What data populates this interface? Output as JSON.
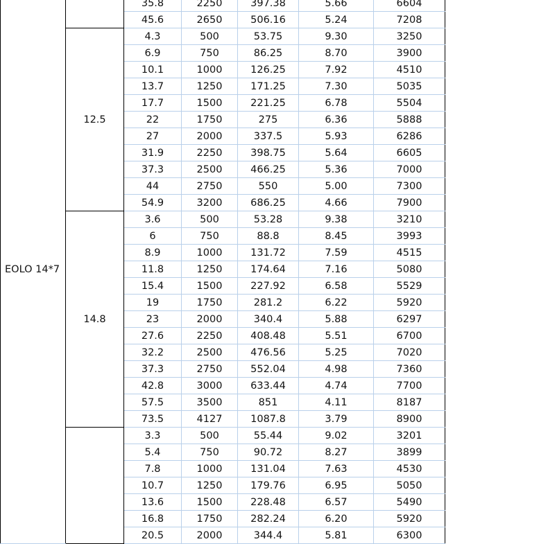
{
  "model": "EOLO 14*7",
  "groups": [
    {
      "voltage": "",
      "rows": [
        [
          "35.8",
          "2250",
          "397.38",
          "5.66",
          "6604"
        ],
        [
          "45.6",
          "2650",
          "506.16",
          "5.24",
          "7208"
        ]
      ]
    },
    {
      "voltage": "12.5",
      "rows": [
        [
          "4.3",
          "500",
          "53.75",
          "9.30",
          "3250"
        ],
        [
          "6.9",
          "750",
          "86.25",
          "8.70",
          "3900"
        ],
        [
          "10.1",
          "1000",
          "126.25",
          "7.92",
          "4510"
        ],
        [
          "13.7",
          "1250",
          "171.25",
          "7.30",
          "5035"
        ],
        [
          "17.7",
          "1500",
          "221.25",
          "6.78",
          "5504"
        ],
        [
          "22",
          "1750",
          "275",
          "6.36",
          "5888"
        ],
        [
          "27",
          "2000",
          "337.5",
          "5.93",
          "6286"
        ],
        [
          "31.9",
          "2250",
          "398.75",
          "5.64",
          "6605"
        ],
        [
          "37.3",
          "2500",
          "466.25",
          "5.36",
          "7000"
        ],
        [
          "44",
          "2750",
          "550",
          "5.00",
          "7300"
        ],
        [
          "54.9",
          "3200",
          "686.25",
          "4.66",
          "7900"
        ]
      ]
    },
    {
      "voltage": "14.8",
      "rows": [
        [
          "3.6",
          "500",
          "53.28",
          "9.38",
          "3210"
        ],
        [
          "6",
          "750",
          "88.8",
          "8.45",
          "3993"
        ],
        [
          "8.9",
          "1000",
          "131.72",
          "7.59",
          "4515"
        ],
        [
          "11.8",
          "1250",
          "174.64",
          "7.16",
          "5080"
        ],
        [
          "15.4",
          "1500",
          "227.92",
          "6.58",
          "5529"
        ],
        [
          "19",
          "1750",
          "281.2",
          "6.22",
          "5920"
        ],
        [
          "23",
          "2000",
          "340.4",
          "5.88",
          "6297"
        ],
        [
          "27.6",
          "2250",
          "408.48",
          "5.51",
          "6700"
        ],
        [
          "32.2",
          "2500",
          "476.56",
          "5.25",
          "7020"
        ],
        [
          "37.3",
          "2750",
          "552.04",
          "4.98",
          "7360"
        ],
        [
          "42.8",
          "3000",
          "633.44",
          "4.74",
          "7700"
        ],
        [
          "57.5",
          "3500",
          "851",
          "4.11",
          "8187"
        ],
        [
          "73.5",
          "4127",
          "1087.8",
          "3.79",
          "8900"
        ]
      ]
    },
    {
      "voltage": "",
      "rows": [
        [
          "3.3",
          "500",
          "55.44",
          "9.02",
          "3201"
        ],
        [
          "5.4",
          "750",
          "90.72",
          "8.27",
          "3899"
        ],
        [
          "7.8",
          "1000",
          "131.04",
          "7.63",
          "4530"
        ],
        [
          "10.7",
          "1250",
          "179.76",
          "6.95",
          "5050"
        ],
        [
          "13.6",
          "1500",
          "228.48",
          "6.57",
          "5490"
        ],
        [
          "16.8",
          "1750",
          "282.24",
          "6.20",
          "5920"
        ],
        [
          "20.5",
          "2000",
          "344.4",
          "5.81",
          "6300"
        ]
      ]
    }
  ]
}
